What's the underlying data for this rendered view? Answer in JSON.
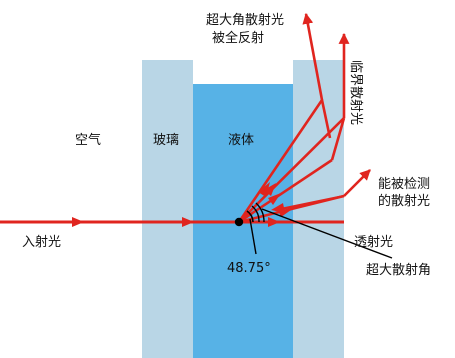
{
  "colors": {
    "glass": "#b9d6e6",
    "liquid": "#57b2e6",
    "ray": "#e0251f",
    "text": "#111111",
    "pointer": "#000000"
  },
  "labels": {
    "air": "空气",
    "glass": "玻璃",
    "liquid": "液体",
    "incident": "入射光",
    "transmitted": "透射光",
    "total_reflection_line1": "超大角散射光",
    "total_reflection_line2": "被全反射",
    "critical_scatter": "临界散射光",
    "detectable_line1": "能被检测",
    "detectable_line2": "的散射光",
    "max_angle": "超大散射角",
    "angle_value": "48.75°"
  }
}
